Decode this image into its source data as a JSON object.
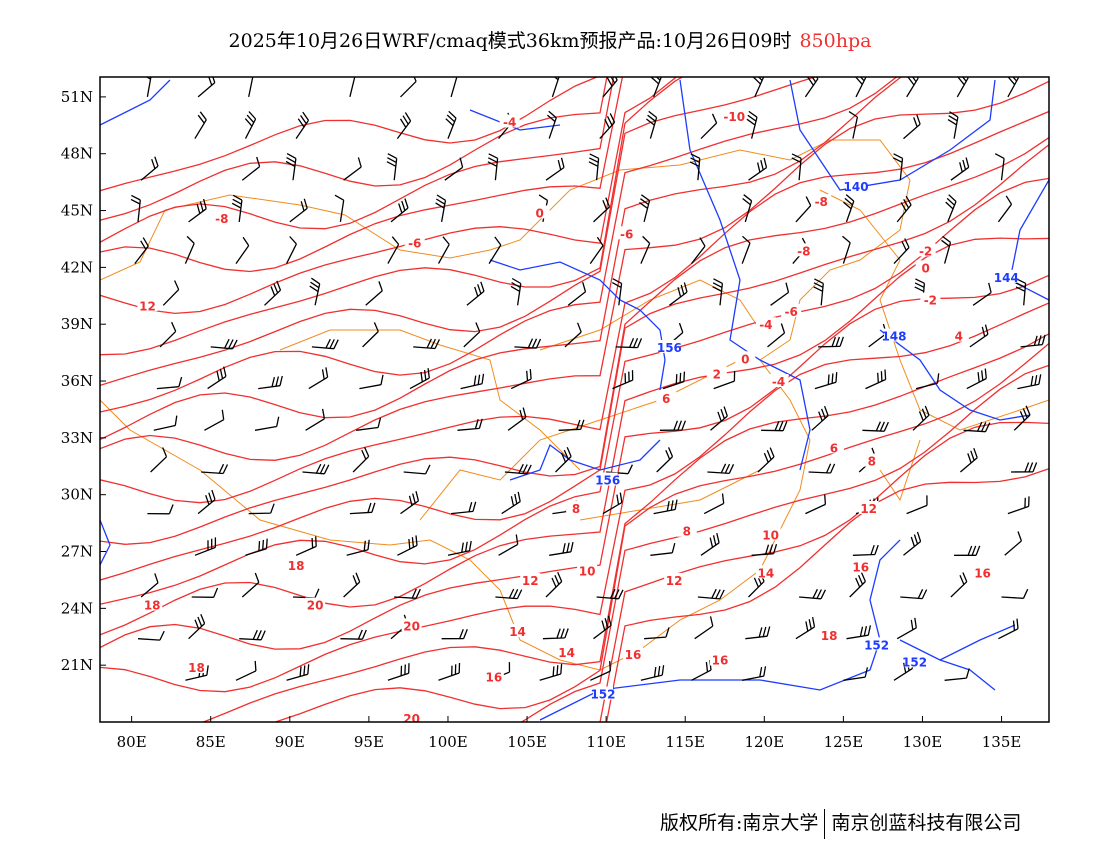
{
  "title": {
    "main": "2025年10月26日WRF/cmaq模式36km预报产品:10月26日09时",
    "level": "850hpa",
    "level_color": "#f03030"
  },
  "footer": {
    "left": "版权所有:南京大学",
    "right": "南京创蓝科技有限公司"
  },
  "map": {
    "lon_range": [
      78,
      138
    ],
    "lat_range": [
      18,
      52.05
    ],
    "lon_ticks": [
      "80E",
      "85E",
      "90E",
      "95E",
      "100E",
      "105E",
      "110E",
      "115E",
      "120E",
      "125E",
      "130E",
      "135E"
    ],
    "lon_tick_values": [
      80,
      85,
      90,
      95,
      100,
      105,
      110,
      115,
      120,
      125,
      130,
      135
    ],
    "lat_ticks": [
      "51N",
      "48N",
      "45N",
      "42N",
      "39N",
      "36N",
      "33N",
      "30N",
      "27N",
      "24N",
      "21N"
    ],
    "lat_tick_values": [
      51,
      48,
      45,
      42,
      39,
      36,
      33,
      30,
      27,
      24,
      21
    ],
    "colors": {
      "temperature": "#f03030",
      "height": "#1e3cff",
      "border": "#f08c1e",
      "wind": "#000000"
    },
    "temperature_labels": [
      {
        "t": "-4",
        "lon": 103.9,
        "lat": 49.7
      },
      {
        "t": "-10",
        "lon": 118.1,
        "lat": 50.0
      },
      {
        "t": "-8",
        "lon": 85.7,
        "lat": 44.6
      },
      {
        "t": "0",
        "lon": 105.8,
        "lat": 44.9
      },
      {
        "t": "-6",
        "lon": 111.3,
        "lat": 43.8
      },
      {
        "t": "-6",
        "lon": 97.9,
        "lat": 43.3
      },
      {
        "t": "-8",
        "lon": 123.6,
        "lat": 45.5
      },
      {
        "t": "-8",
        "lon": 122.5,
        "lat": 42.9
      },
      {
        "t": "-2",
        "lon": 130.2,
        "lat": 42.9
      },
      {
        "t": "0",
        "lon": 130.2,
        "lat": 42.0
      },
      {
        "t": "-2",
        "lon": 130.5,
        "lat": 40.3
      },
      {
        "t": "4",
        "lon": 132.3,
        "lat": 38.4
      },
      {
        "t": "-6",
        "lon": 121.7,
        "lat": 39.7
      },
      {
        "t": "-4",
        "lon": 120.1,
        "lat": 39.0
      },
      {
        "t": "0",
        "lon": 118.8,
        "lat": 37.2
      },
      {
        "t": "2",
        "lon": 117.0,
        "lat": 36.4
      },
      {
        "t": "-4",
        "lon": 120.9,
        "lat": 36.0
      },
      {
        "t": "6",
        "lon": 113.8,
        "lat": 35.1
      },
      {
        "t": "6",
        "lon": 124.4,
        "lat": 32.5
      },
      {
        "t": "8",
        "lon": 126.8,
        "lat": 31.8
      },
      {
        "t": "12",
        "lon": 81.0,
        "lat": 40.0
      },
      {
        "t": "8",
        "lon": 108.1,
        "lat": 29.3
      },
      {
        "t": "8",
        "lon": 115.1,
        "lat": 28.1
      },
      {
        "t": "10",
        "lon": 120.4,
        "lat": 27.9
      },
      {
        "t": "12",
        "lon": 126.6,
        "lat": 29.3
      },
      {
        "t": "10",
        "lon": 108.8,
        "lat": 26.0
      },
      {
        "t": "12",
        "lon": 114.3,
        "lat": 25.5
      },
      {
        "t": "14",
        "lon": 120.1,
        "lat": 25.9
      },
      {
        "t": "16",
        "lon": 126.1,
        "lat": 26.2
      },
      {
        "t": "16",
        "lon": 133.8,
        "lat": 25.9
      },
      {
        "t": "12",
        "lon": 105.2,
        "lat": 25.5
      },
      {
        "t": "14",
        "lon": 104.4,
        "lat": 22.8
      },
      {
        "t": "14",
        "lon": 107.5,
        "lat": 21.7
      },
      {
        "t": "16",
        "lon": 111.7,
        "lat": 21.6
      },
      {
        "t": "16",
        "lon": 117.2,
        "lat": 21.3
      },
      {
        "t": "18",
        "lon": 124.1,
        "lat": 22.6
      },
      {
        "t": "18",
        "lon": 90.4,
        "lat": 26.3
      },
      {
        "t": "20",
        "lon": 91.6,
        "lat": 24.2
      },
      {
        "t": "20",
        "lon": 97.7,
        "lat": 23.1
      },
      {
        "t": "18",
        "lon": 81.3,
        "lat": 24.2
      },
      {
        "t": "18",
        "lon": 84.1,
        "lat": 20.9
      },
      {
        "t": "16",
        "lon": 102.9,
        "lat": 20.4
      },
      {
        "t": "20",
        "lon": 97.7,
        "lat": 18.2
      }
    ],
    "height_labels": [
      {
        "t": "140",
        "lon": 125.8,
        "lat": 46.3
      },
      {
        "t": "144",
        "lon": 135.3,
        "lat": 41.5
      },
      {
        "t": "148",
        "lon": 128.2,
        "lat": 38.4
      },
      {
        "t": "156",
        "lon": 114.0,
        "lat": 37.8
      },
      {
        "t": "156",
        "lon": 110.1,
        "lat": 30.8
      },
      {
        "t": "152",
        "lon": 127.1,
        "lat": 22.1
      },
      {
        "t": "152",
        "lon": 129.5,
        "lat": 21.2
      },
      {
        "t": "152",
        "lon": 109.8,
        "lat": 19.5
      }
    ]
  }
}
